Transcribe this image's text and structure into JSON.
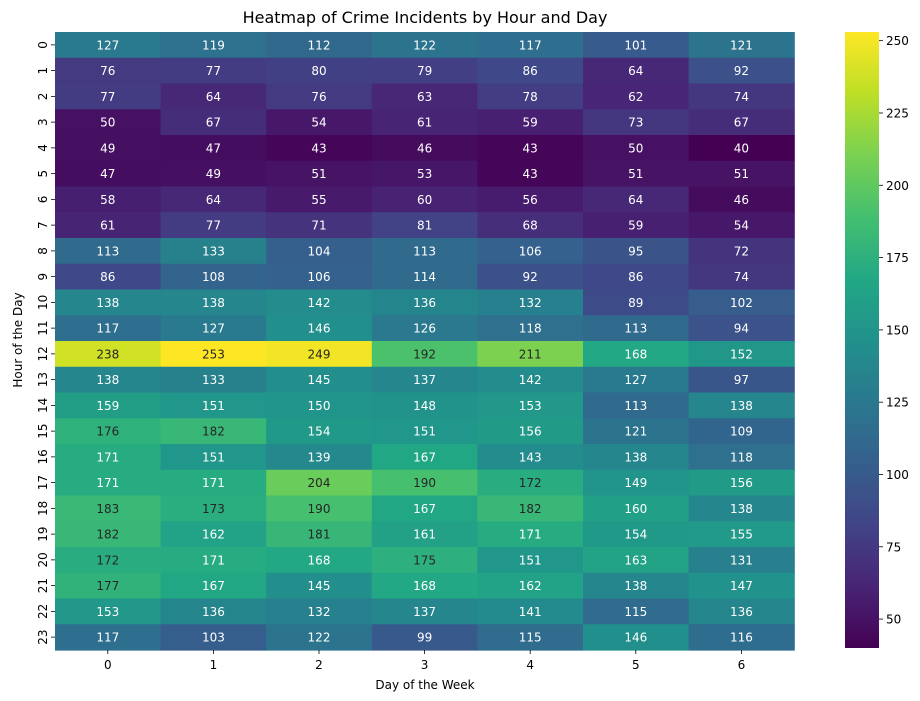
{
  "chart_data": {
    "type": "heatmap",
    "title": "Heatmap of Crime Incidents by Hour and Day",
    "xlabel": "Day of the Week",
    "ylabel": "Hour of the Day",
    "x_categories": [
      "0",
      "1",
      "2",
      "3",
      "4",
      "5",
      "6"
    ],
    "y_categories": [
      "0",
      "1",
      "2",
      "3",
      "4",
      "5",
      "6",
      "7",
      "8",
      "9",
      "10",
      "11",
      "12",
      "13",
      "14",
      "15",
      "16",
      "17",
      "18",
      "19",
      "20",
      "21",
      "22",
      "23"
    ],
    "values": [
      [
        127,
        119,
        112,
        122,
        117,
        101,
        121
      ],
      [
        76,
        77,
        80,
        79,
        86,
        64,
        92
      ],
      [
        77,
        64,
        76,
        63,
        78,
        62,
        74
      ],
      [
        50,
        67,
        54,
        61,
        59,
        73,
        67
      ],
      [
        49,
        47,
        43,
        46,
        43,
        50,
        40
      ],
      [
        47,
        49,
        51,
        53,
        43,
        51,
        51
      ],
      [
        58,
        64,
        55,
        60,
        56,
        64,
        46
      ],
      [
        61,
        77,
        71,
        81,
        68,
        59,
        54
      ],
      [
        113,
        133,
        104,
        113,
        106,
        95,
        72
      ],
      [
        86,
        108,
        106,
        114,
        92,
        86,
        74
      ],
      [
        138,
        138,
        142,
        136,
        132,
        89,
        102
      ],
      [
        117,
        127,
        146,
        126,
        118,
        113,
        94
      ],
      [
        238,
        253,
        249,
        192,
        211,
        168,
        152
      ],
      [
        138,
        133,
        145,
        137,
        142,
        127,
        97
      ],
      [
        159,
        151,
        150,
        148,
        153,
        113,
        138
      ],
      [
        176,
        182,
        154,
        151,
        156,
        121,
        109
      ],
      [
        171,
        151,
        139,
        167,
        143,
        138,
        118
      ],
      [
        171,
        171,
        204,
        190,
        172,
        149,
        156
      ],
      [
        183,
        173,
        190,
        167,
        182,
        160,
        138
      ],
      [
        182,
        162,
        181,
        161,
        171,
        154,
        155
      ],
      [
        172,
        171,
        168,
        175,
        151,
        163,
        131
      ],
      [
        177,
        167,
        145,
        168,
        162,
        138,
        147
      ],
      [
        153,
        136,
        132,
        137,
        141,
        115,
        136
      ],
      [
        117,
        103,
        122,
        99,
        115,
        146,
        116
      ]
    ],
    "colormap": "viridis",
    "vmin": 40,
    "vmax": 253,
    "colorbar_ticks": [
      50,
      75,
      100,
      125,
      150,
      175,
      200,
      225,
      250
    ],
    "grid": false
  }
}
